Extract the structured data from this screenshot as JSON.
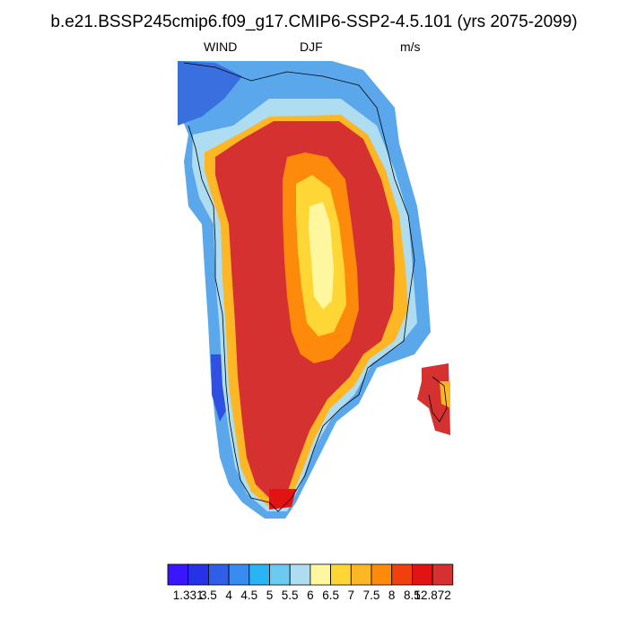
{
  "title": "b.e21.BSSP245cmip6.f09_g17.CMIP6-SSP2-4.5.101 (yrs 2075-2099)",
  "left_label": "WIND",
  "center_label": "DJF",
  "right_label": "m/s",
  "colorbar": {
    "colors": [
      "#3a16ff",
      "#2532e6",
      "#2f5fe6",
      "#3a8bf0",
      "#2ab3f5",
      "#6ccaf2",
      "#aedcf0",
      "#fff79f",
      "#fed737",
      "#fdb624",
      "#fd8a0a",
      "#f0400d",
      "#e41313",
      "#d53131"
    ],
    "labels": [
      "1.331",
      "3.5",
      "4",
      "4.5",
      "5",
      "5.5",
      "6",
      "6.5",
      "7",
      "7.5",
      "8",
      "8.5",
      "12.872"
    ]
  }
}
